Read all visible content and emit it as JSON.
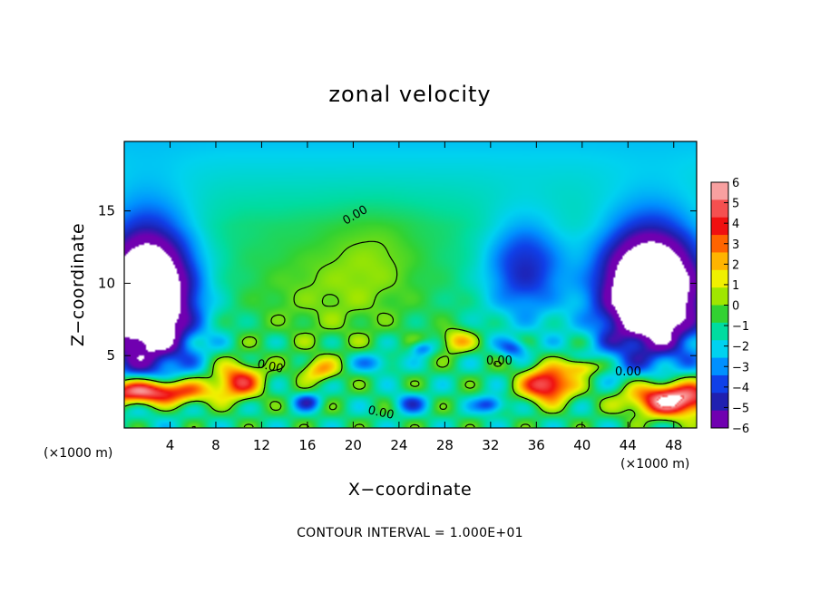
{
  "chart_data": {
    "type": "heatmap",
    "title": "zonal velocity",
    "xlabel": "X−coordinate",
    "ylabel": "Z−coordinate",
    "x_units_left": "(×1000 m)",
    "x_units_right": "(×1000 m)",
    "xlim": [
      0,
      50
    ],
    "ylim": [
      0,
      19.8
    ],
    "x_ticks": [
      4,
      8,
      12,
      16,
      20,
      24,
      28,
      32,
      36,
      40,
      44,
      48
    ],
    "x_tick_labels": [
      "4",
      "8",
      "12",
      "16",
      "20",
      "24",
      "28",
      "32",
      "36",
      "40",
      "44",
      "48"
    ],
    "y_ticks": [
      5,
      10,
      15
    ],
    "y_tick_labels": [
      "5",
      "10",
      "15"
    ],
    "colorbar": {
      "ticks": [
        6,
        5,
        4,
        3,
        2,
        1,
        0,
        -1,
        -2,
        -3,
        -4,
        -5,
        -6
      ],
      "tick_labels": [
        "6",
        "5",
        "4",
        "3",
        "2",
        "1",
        "0",
        "−1",
        "−2",
        "−3",
        "−4",
        "−5",
        "−6"
      ],
      "colors": [
        "#f8a0a0",
        "#f55050",
        "#f01010",
        "#ff6400",
        "#ffb400",
        "#f0f000",
        "#a0e600",
        "#32d232",
        "#00dca0",
        "#00d2f0",
        "#0090ff",
        "#1040e8",
        "#2020b0",
        "#7000b0"
      ]
    },
    "contour_labels": [
      "0.00",
      "0.00",
      "0.00",
      "0.00",
      "0.00"
    ],
    "footer": "CONTOUR INTERVAL = 1.000E+01",
    "field": {
      "background": -1.2,
      "top_layer": -2.8,
      "blobs": [
        {
          "x": 2,
          "z": 9,
          "sx": 4.0,
          "sz": 5.0,
          "v": -11
        },
        {
          "x": 46,
          "z": 9.5,
          "sx": 4.5,
          "sz": 4.5,
          "v": -11
        },
        {
          "x": 35,
          "z": 11,
          "sx": 3.5,
          "sz": 3.5,
          "v": -4
        },
        {
          "x": 18,
          "z": 9,
          "sx": 7.0,
          "sz": 4.0,
          "v": 1.3
        },
        {
          "x": 22,
          "z": 12,
          "sx": 4.0,
          "sz": 3.0,
          "v": 0.9
        },
        {
          "x": 10,
          "z": 3.3,
          "sx": 2.0,
          "sz": 1.2,
          "v": 5.5
        },
        {
          "x": 17,
          "z": 4,
          "sx": 1.6,
          "sz": 0.8,
          "v": 3.5
        },
        {
          "x": 29,
          "z": 6,
          "sx": 1.5,
          "sz": 0.8,
          "v": 3.5
        },
        {
          "x": 37,
          "z": 3,
          "sx": 2.2,
          "sz": 1.2,
          "v": 7.5
        },
        {
          "x": 2,
          "z": 2.5,
          "sx": 5.0,
          "sz": 0.9,
          "v": 9
        },
        {
          "x": 48,
          "z": 2,
          "sx": 4.0,
          "sz": 1.2,
          "v": 9
        },
        {
          "x": 16,
          "z": 1.8,
          "sx": 1.2,
          "sz": 0.6,
          "v": -3.5
        },
        {
          "x": 25,
          "z": 1.7,
          "sx": 1.5,
          "sz": 0.7,
          "v": -3.0
        },
        {
          "x": 32,
          "z": 1.6,
          "sx": 1.3,
          "sz": 0.6,
          "v": -4
        },
        {
          "x": 26,
          "z": 5.5,
          "sx": 1.0,
          "sz": 0.5,
          "v": -3
        },
        {
          "x": 34,
          "z": 5.5,
          "sx": 1.2,
          "sz": 0.6,
          "v": -3
        },
        {
          "x": 22,
          "z": 4.5,
          "sx": 2.0,
          "sz": 0.7,
          "v": -2.5
        },
        {
          "x": 40,
          "z": 4.2,
          "sx": 1.5,
          "sz": 0.6,
          "v": 4
        }
      ]
    }
  }
}
